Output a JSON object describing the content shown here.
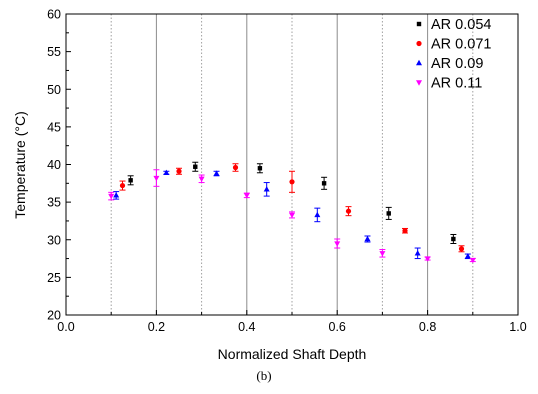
{
  "chart_data": {
    "type": "scatter",
    "title": "",
    "xlabel": "Normalized Shaft Depth",
    "ylabel": "Temperature (°C)",
    "caption": "(b)",
    "xlim": [
      0.0,
      1.0
    ],
    "ylim": [
      20,
      60
    ],
    "xticks": [
      "0.0",
      "0.2",
      "0.4",
      "0.6",
      "0.8",
      "1.0"
    ],
    "yticks": [
      "20",
      "25",
      "30",
      "35",
      "40",
      "45",
      "50",
      "55",
      "60"
    ],
    "grid": "vertical lines at 0.1 intervals (solid at 0.2 multiples, dotted at odd tenths)",
    "legend_position": "top-right",
    "series": [
      {
        "name": "AR 0.054",
        "color": "#000000",
        "marker": "square",
        "points": [
          {
            "x": 0.143,
            "y": 37.9,
            "err": 0.6
          },
          {
            "x": 0.286,
            "y": 39.7,
            "err": 0.6
          },
          {
            "x": 0.429,
            "y": 39.5,
            "err": 0.6
          },
          {
            "x": 0.571,
            "y": 37.5,
            "err": 0.8
          },
          {
            "x": 0.714,
            "y": 33.5,
            "err": 0.8
          },
          {
            "x": 0.857,
            "y": 30.1,
            "err": 0.6
          }
        ]
      },
      {
        "name": "AR 0.071",
        "color": "#ff0000",
        "marker": "circle",
        "points": [
          {
            "x": 0.125,
            "y": 37.2,
            "err": 0.6
          },
          {
            "x": 0.25,
            "y": 39.1,
            "err": 0.4
          },
          {
            "x": 0.375,
            "y": 39.6,
            "err": 0.5
          },
          {
            "x": 0.5,
            "y": 37.7,
            "err": 1.4
          },
          {
            "x": 0.625,
            "y": 33.8,
            "err": 0.6
          },
          {
            "x": 0.75,
            "y": 31.2,
            "err": 0.3
          },
          {
            "x": 0.875,
            "y": 28.8,
            "err": 0.4
          }
        ]
      },
      {
        "name": "AR 0.09",
        "color": "#0000ff",
        "marker": "triangle-up",
        "points": [
          {
            "x": 0.111,
            "y": 35.9,
            "err": 0.5
          },
          {
            "x": 0.222,
            "y": 38.9,
            "err": 0.2
          },
          {
            "x": 0.333,
            "y": 38.8,
            "err": 0.3
          },
          {
            "x": 0.444,
            "y": 36.7,
            "err": 0.9
          },
          {
            "x": 0.556,
            "y": 33.3,
            "err": 0.9
          },
          {
            "x": 0.667,
            "y": 30.1,
            "err": 0.4
          },
          {
            "x": 0.778,
            "y": 28.2,
            "err": 0.7
          },
          {
            "x": 0.889,
            "y": 27.8,
            "err": 0.3
          }
        ]
      },
      {
        "name": "AR 0.11",
        "color": "#ff00ff",
        "marker": "triangle-down",
        "points": [
          {
            "x": 0.1,
            "y": 35.8,
            "err": 0.5
          },
          {
            "x": 0.2,
            "y": 38.2,
            "err": 1.1
          },
          {
            "x": 0.3,
            "y": 38.1,
            "err": 0.5
          },
          {
            "x": 0.4,
            "y": 35.9,
            "err": 0.3
          },
          {
            "x": 0.5,
            "y": 33.3,
            "err": 0.4
          },
          {
            "x": 0.6,
            "y": 29.5,
            "err": 0.6
          },
          {
            "x": 0.7,
            "y": 28.2,
            "err": 0.5
          },
          {
            "x": 0.8,
            "y": 27.5,
            "err": 0.2
          },
          {
            "x": 0.9,
            "y": 27.3,
            "err": 0.2
          }
        ]
      }
    ]
  }
}
